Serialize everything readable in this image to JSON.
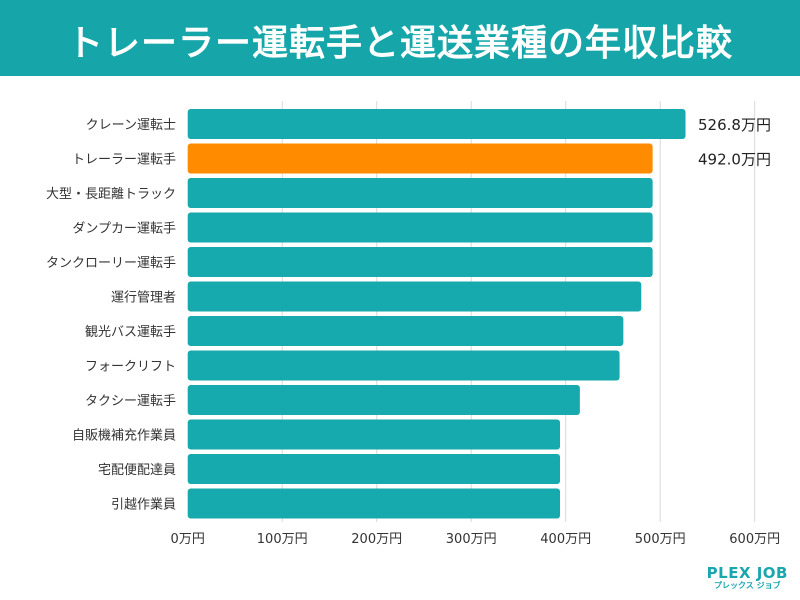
{
  "title": "トレーラー運転手と運送業種の年収比較",
  "chart_data": {
    "type": "bar",
    "orientation": "horizontal",
    "title": "トレーラー運転手と運送業種の年収比較",
    "categories": [
      "クレーン運転士",
      "トレーラー運転手",
      "大型・長距離トラック",
      "ダンプカー運転手",
      "タンクローリー運転手",
      "運行管理者",
      "観光バス運転手",
      "フォークリフト",
      "タクシー運転手",
      "自販機補充作業員",
      "宅配便配達員",
      "引越作業員"
    ],
    "values": [
      526.8,
      492.0,
      492,
      492,
      492,
      480,
      461,
      457,
      415,
      394,
      394,
      394
    ],
    "data_labels": [
      "526.8万円",
      "492.0万円",
      "",
      "",
      "",
      "",
      "",
      "",
      "",
      "",
      "",
      ""
    ],
    "highlight_index": 1,
    "colors": {
      "default": "#16a9ad",
      "highlight": "#ff8c00",
      "grid": "#d9d9d9"
    },
    "xlim": [
      0,
      600
    ],
    "xticks": [
      0,
      100,
      200,
      300,
      400,
      500,
      600
    ],
    "xtick_labels": [
      "0万円",
      "100万円",
      "200万円",
      "300万円",
      "400万円",
      "500万円",
      "600万円"
    ],
    "grid": true,
    "xlabel": "",
    "ylabel": ""
  },
  "logo": {
    "name": "PLEX JOB",
    "kana": "プレックス ジョブ"
  }
}
